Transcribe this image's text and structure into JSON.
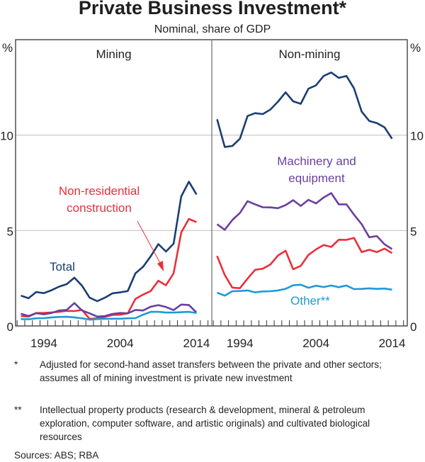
{
  "header": {
    "title": "Private Business Investment*",
    "subtitle": "Nominal, share of GDP"
  },
  "chart_data": [
    {
      "type": "line",
      "panel": "Mining",
      "title": "Mining",
      "ylabel": "%",
      "ylim": [
        0,
        15
      ],
      "yticks": [
        0,
        5,
        10
      ],
      "xlim": [
        1990.3,
        2016.0
      ],
      "xtick_labels": [
        "1994",
        "2004",
        "2014"
      ],
      "xtick_label_years": [
        1994,
        2004,
        2014
      ],
      "grid": true,
      "x": [
        1991,
        1992,
        1993,
        1994,
        1995,
        1996,
        1997,
        1998,
        1999,
        2000,
        2001,
        2002,
        2003,
        2004,
        2005,
        2006,
        2007,
        2008,
        2009,
        2010,
        2011,
        2012,
        2013,
        2014
      ],
      "series": [
        {
          "name": "Total",
          "color": "#1a3e72",
          "values": [
            1.59,
            1.45,
            1.78,
            1.72,
            1.87,
            2.06,
            2.19,
            2.53,
            2.11,
            1.48,
            1.3,
            1.48,
            1.71,
            1.76,
            1.83,
            2.76,
            3.1,
            3.65,
            4.29,
            3.9,
            4.31,
            6.79,
            7.56,
            6.89
          ]
        },
        {
          "name": "Non-residential construction",
          "color": "#e8303a",
          "values": [
            0.52,
            0.49,
            0.68,
            0.68,
            0.71,
            0.74,
            0.79,
            0.78,
            0.84,
            0.37,
            0.4,
            0.47,
            0.58,
            0.59,
            0.66,
            1.42,
            1.64,
            1.83,
            2.37,
            2.13,
            2.76,
            4.9,
            5.61,
            5.44
          ]
        },
        {
          "name": "Machinery and equipment",
          "color": "#6a3fa0",
          "values": [
            0.64,
            0.52,
            0.67,
            0.61,
            0.68,
            0.81,
            0.84,
            1.2,
            0.81,
            0.66,
            0.49,
            0.52,
            0.63,
            0.68,
            0.66,
            0.84,
            0.81,
            1.01,
            1.09,
            0.99,
            0.83,
            1.12,
            1.1,
            0.7
          ]
        },
        {
          "name": "Other**",
          "color": "#1e9ad6",
          "values": [
            0.36,
            0.35,
            0.4,
            0.41,
            0.45,
            0.47,
            0.48,
            0.45,
            0.4,
            0.33,
            0.36,
            0.37,
            0.38,
            0.38,
            0.4,
            0.41,
            0.59,
            0.74,
            0.74,
            0.7,
            0.7,
            0.72,
            0.74,
            0.68
          ]
        }
      ],
      "annotations": [
        {
          "text": "Total",
          "series": "Total"
        },
        {
          "text_lines": [
            "Non-residential",
            "construction"
          ],
          "series": "Non-residential construction",
          "arrow": true
        }
      ]
    },
    {
      "type": "line",
      "panel": "Non-mining",
      "title": "Non-mining",
      "ylabel": "%",
      "ylim": [
        0,
        15
      ],
      "yticks": [
        0,
        5,
        10
      ],
      "xlim": [
        1990.3,
        2016.0
      ],
      "xtick_labels": [
        "1994",
        "2004",
        "2014"
      ],
      "xtick_label_years": [
        1994,
        2004,
        2014
      ],
      "grid": true,
      "x": [
        1991,
        1992,
        1993,
        1994,
        1995,
        1996,
        1997,
        1998,
        1999,
        2000,
        2001,
        2002,
        2003,
        2004,
        2005,
        2006,
        2007,
        2008,
        2009,
        2010,
        2011,
        2012,
        2013,
        2014
      ],
      "series": [
        {
          "name": "Total",
          "color": "#1a3e72",
          "values": [
            10.83,
            9.38,
            9.43,
            9.81,
            11.0,
            11.15,
            11.1,
            11.34,
            11.75,
            12.24,
            11.77,
            11.64,
            12.43,
            12.61,
            13.1,
            13.28,
            13.0,
            13.1,
            12.45,
            11.23,
            10.74,
            10.63,
            10.41,
            9.81
          ]
        },
        {
          "name": "Machinery and equipment",
          "color": "#6a3fa0",
          "values": [
            5.33,
            5.04,
            5.55,
            5.92,
            6.54,
            6.37,
            6.22,
            6.21,
            6.17,
            6.33,
            6.59,
            6.29,
            6.61,
            6.42,
            6.73,
            6.96,
            6.37,
            6.37,
            5.83,
            5.33,
            4.65,
            4.71,
            4.28,
            4.03
          ]
        },
        {
          "name": "Non-residential construction",
          "color": "#e8303a",
          "values": [
            3.67,
            2.67,
            2.01,
            1.98,
            2.48,
            2.94,
            3.0,
            3.22,
            3.69,
            3.94,
            2.97,
            3.15,
            3.72,
            4.01,
            4.24,
            4.14,
            4.52,
            4.51,
            4.61,
            3.87,
            3.99,
            3.87,
            4.05,
            3.82
          ]
        },
        {
          "name": "Other**",
          "color": "#1e9ad6",
          "values": [
            1.74,
            1.59,
            1.82,
            1.83,
            1.86,
            1.76,
            1.81,
            1.82,
            1.86,
            1.94,
            2.13,
            2.16,
            2.0,
            2.11,
            2.04,
            2.12,
            2.03,
            2.12,
            1.93,
            1.94,
            1.97,
            1.94,
            1.96,
            1.9
          ]
        }
      ],
      "annotations": [
        {
          "text_lines": [
            "Machinery and",
            "equipment"
          ],
          "series": "Machinery and equipment"
        },
        {
          "text": "Other**",
          "series": "Other**"
        }
      ]
    }
  ],
  "axis": {
    "left_unit": "%",
    "right_unit": "%",
    "ytick_labels": [
      "0",
      "5",
      "10"
    ]
  },
  "footnotes": [
    {
      "mark": "*",
      "text": "Adjusted for second-hand asset transfers between the private and other sectors; assumes all of mining investment is private new investment"
    },
    {
      "mark": "**",
      "text": "Intellectual property products (research & development, mineral & petroleum exploration, computer software, and artistic originals) and cultivated biological resources"
    }
  ],
  "sources": "Sources:  ABS; RBA"
}
